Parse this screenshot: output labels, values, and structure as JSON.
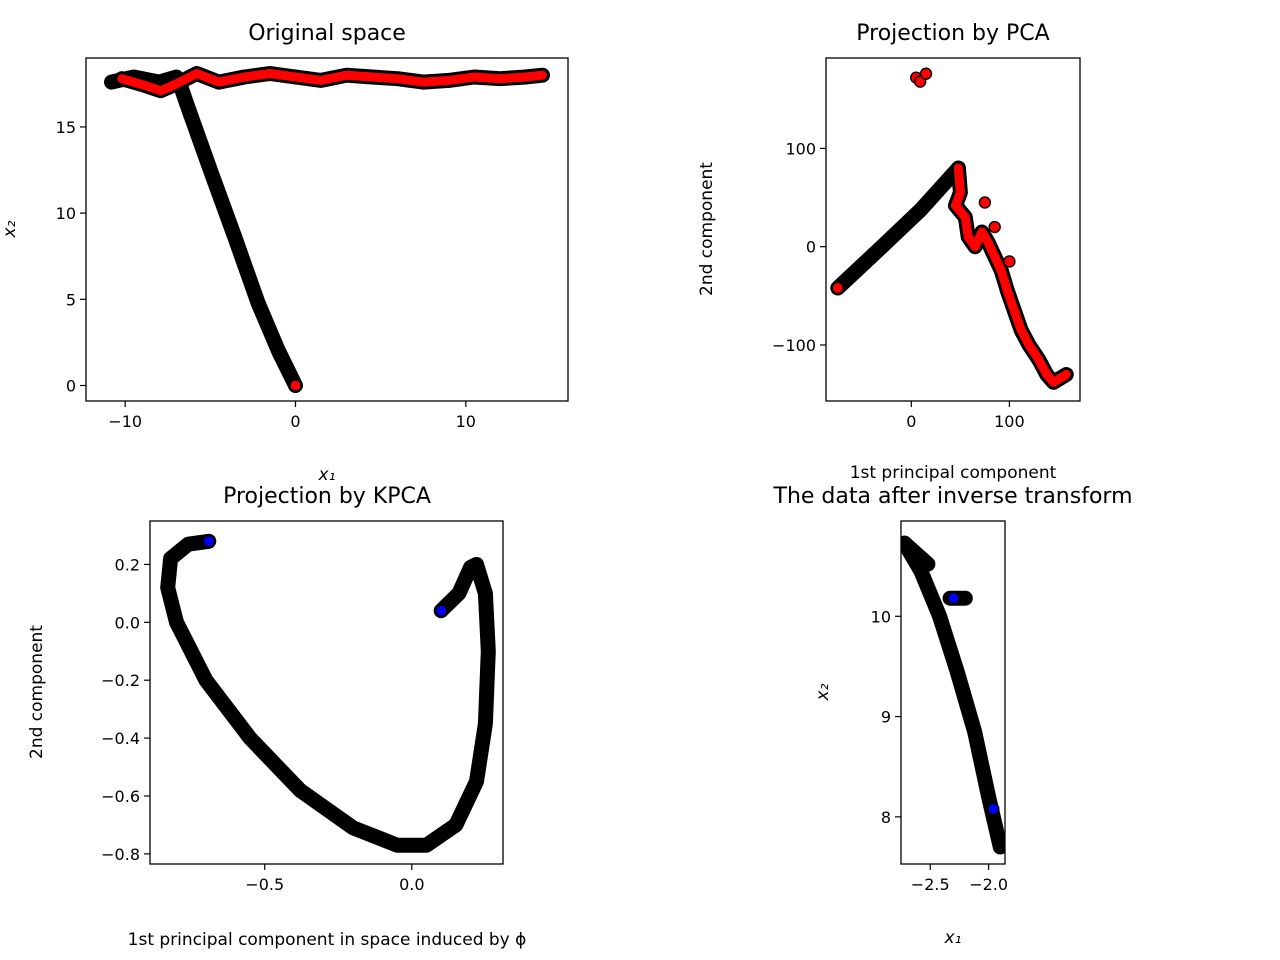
{
  "chart_data": [
    {
      "type": "scatter",
      "title": "Original space",
      "xlabel": "x₁",
      "ylabel": "x₂",
      "xlim": [
        -12.3,
        16.0
      ],
      "ylim": [
        -0.9,
        19.0
      ],
      "xticks": [
        {
          "v": -10,
          "label": "−10"
        },
        {
          "v": 0,
          "label": "0"
        },
        {
          "v": 10,
          "label": "10"
        }
      ],
      "yticks": [
        {
          "v": 0,
          "label": "0"
        },
        {
          "v": 5,
          "label": "5"
        },
        {
          "v": 10,
          "label": "10"
        },
        {
          "v": 15,
          "label": "15"
        }
      ],
      "series": [
        {
          "color": "#000000",
          "kind": "line",
          "points": [
            [
              -6.9,
              17.8
            ],
            [
              -6.3,
              16.1
            ],
            [
              -5.0,
              12.5
            ],
            [
              -3.6,
              8.7
            ],
            [
              -2.2,
              4.8
            ],
            [
              -1.0,
              2.0
            ],
            [
              0.0,
              0.0
            ]
          ]
        },
        {
          "color": "#000000",
          "kind": "line",
          "points": [
            [
              -10.8,
              17.6
            ],
            [
              -9.5,
              17.9
            ],
            [
              -8.0,
              17.6
            ],
            [
              -7.0,
              17.9
            ]
          ]
        },
        {
          "color": "#ff0000",
          "kind": "line",
          "points": [
            [
              -10.2,
              17.8
            ],
            [
              -8.8,
              17.4
            ],
            [
              -7.9,
              17.1
            ],
            [
              -7.0,
              17.5
            ],
            [
              -5.8,
              18.1
            ],
            [
              -4.5,
              17.6
            ],
            [
              -3.0,
              17.9
            ],
            [
              -1.5,
              18.1
            ],
            [
              0.0,
              17.9
            ],
            [
              1.5,
              17.7
            ],
            [
              3.0,
              18.0
            ],
            [
              4.5,
              17.9
            ],
            [
              6.0,
              17.8
            ],
            [
              7.5,
              17.6
            ],
            [
              9.0,
              17.7
            ],
            [
              10.5,
              17.9
            ],
            [
              12.0,
              17.8
            ],
            [
              13.5,
              17.9
            ],
            [
              14.5,
              18.0
            ]
          ]
        },
        {
          "color": "#ff0000",
          "kind": "points",
          "points": [
            [
              0.0,
              0.0
            ]
          ]
        }
      ]
    },
    {
      "type": "scatter",
      "title": "Projection by PCA",
      "xlabel": "1st principal component",
      "ylabel": "2nd component",
      "xlim": [
        -87,
        172
      ],
      "ylim": [
        -157,
        192
      ],
      "xticks": [
        {
          "v": 0,
          "label": "0"
        },
        {
          "v": 100,
          "label": "100"
        }
      ],
      "yticks": [
        {
          "v": -100,
          "label": "−100"
        },
        {
          "v": 0,
          "label": "0"
        },
        {
          "v": 100,
          "label": "100"
        }
      ],
      "series": [
        {
          "color": "#000000",
          "kind": "line",
          "points": [
            [
              -75,
              -42
            ],
            [
              -30,
              0
            ],
            [
              10,
              38
            ],
            [
              48,
              80
            ]
          ]
        },
        {
          "color": "#ff0000",
          "kind": "line",
          "points": [
            [
              48,
              80
            ],
            [
              50,
              55
            ],
            [
              45,
              42
            ],
            [
              55,
              30
            ],
            [
              58,
              10
            ],
            [
              65,
              0
            ],
            [
              72,
              15
            ],
            [
              78,
              5
            ],
            [
              85,
              -10
            ],
            [
              92,
              -25
            ],
            [
              98,
              -45
            ],
            [
              105,
              -65
            ],
            [
              112,
              -85
            ],
            [
              120,
              -100
            ],
            [
              130,
              -115
            ],
            [
              138,
              -130
            ],
            [
              145,
              -138
            ],
            [
              158,
              -130
            ]
          ]
        },
        {
          "color": "#ff0000",
          "kind": "points",
          "points": [
            [
              -75,
              -42
            ],
            [
              5,
              172
            ],
            [
              9,
              168
            ],
            [
              15,
              176
            ],
            [
              75,
              45
            ],
            [
              85,
              20
            ],
            [
              100,
              -15
            ]
          ]
        }
      ]
    },
    {
      "type": "scatter",
      "title": "Projection by KPCA",
      "xlabel": "1st principal component in space induced by ϕ",
      "ylabel": "2nd component",
      "xlim": [
        -0.89,
        0.31
      ],
      "ylim": [
        -0.835,
        0.35
      ],
      "xticks": [
        {
          "v": -0.5,
          "label": "−0.5"
        },
        {
          "v": 0.0,
          "label": "0.0"
        }
      ],
      "yticks": [
        {
          "v": -0.8,
          "label": "−0.8"
        },
        {
          "v": -0.6,
          "label": "−0.6"
        },
        {
          "v": -0.4,
          "label": "−0.4"
        },
        {
          "v": -0.2,
          "label": "−0.2"
        },
        {
          "v": 0.0,
          "label": "0.0"
        },
        {
          "v": 0.2,
          "label": "0.2"
        }
      ],
      "series": [
        {
          "color": "#000000",
          "kind": "line",
          "points": [
            [
              -0.69,
              0.28
            ],
            [
              -0.76,
              0.27
            ],
            [
              -0.82,
              0.22
            ],
            [
              -0.83,
              0.12
            ],
            [
              -0.8,
              0.0
            ],
            [
              -0.7,
              -0.2
            ],
            [
              -0.55,
              -0.4
            ],
            [
              -0.38,
              -0.58
            ],
            [
              -0.2,
              -0.71
            ],
            [
              -0.05,
              -0.77
            ],
            [
              0.05,
              -0.77
            ],
            [
              0.15,
              -0.7
            ],
            [
              0.22,
              -0.55
            ],
            [
              0.25,
              -0.35
            ],
            [
              0.26,
              -0.1
            ],
            [
              0.25,
              0.1
            ],
            [
              0.22,
              0.2
            ],
            [
              0.2,
              0.19
            ],
            [
              0.16,
              0.1
            ],
            [
              0.12,
              0.06
            ],
            [
              0.1,
              0.04
            ]
          ]
        },
        {
          "color": "#0000ff",
          "kind": "points",
          "points": [
            [
              -0.69,
              0.28
            ],
            [
              0.1,
              0.04
            ]
          ]
        }
      ]
    },
    {
      "type": "scatter",
      "title": "The data after inverse transform",
      "xlabel": "x₁",
      "ylabel": "x₂",
      "xlim": [
        -2.75,
        -1.86
      ],
      "ylim": [
        7.53,
        10.95
      ],
      "xticks": [
        {
          "v": -2.5,
          "label": "−2.5"
        },
        {
          "v": -2.0,
          "label": "−2.0"
        }
      ],
      "yticks": [
        {
          "v": 8,
          "label": "8"
        },
        {
          "v": 9,
          "label": "9"
        },
        {
          "v": 10,
          "label": "10"
        }
      ],
      "series": [
        {
          "color": "#000000",
          "kind": "line",
          "points": [
            [
              -2.72,
              10.73
            ],
            [
              -2.58,
              10.45
            ],
            [
              -2.42,
              10.0
            ],
            [
              -2.27,
              9.45
            ],
            [
              -2.12,
              8.85
            ],
            [
              -2.0,
              8.2
            ],
            [
              -1.9,
              7.7
            ]
          ]
        },
        {
          "color": "#000000",
          "kind": "line",
          "points": [
            [
              -2.72,
              10.73
            ],
            [
              -2.52,
              10.52
            ]
          ]
        },
        {
          "color": "#000000",
          "kind": "line",
          "points": [
            [
              -2.33,
              10.18
            ],
            [
              -2.2,
              10.18
            ]
          ]
        },
        {
          "color": "#0000ff",
          "kind": "points",
          "points": [
            [
              -2.3,
              10.18
            ],
            [
              -1.96,
              8.08
            ]
          ]
        }
      ]
    }
  ]
}
